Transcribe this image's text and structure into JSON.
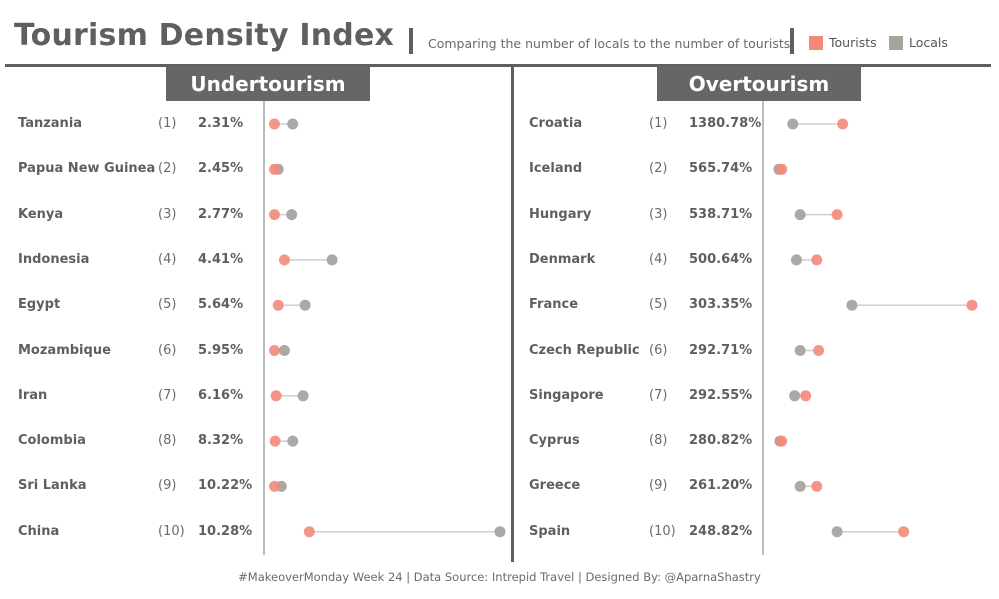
{
  "header": {
    "title": "Tourism Density Index",
    "separator": "|",
    "subtitle": "Comparing the number of locals to the number of tourists",
    "legend": [
      {
        "label": "Tourists",
        "color": "#f4897a"
      },
      {
        "label": "Locals",
        "color": "#a9a39e"
      }
    ]
  },
  "footer": "#MakeoverMonday Week 24 | Data Source: Intrepid Travel  | Designed By: @AparnaShastry",
  "colors": {
    "tourists": "#f4897a",
    "locals": "#a9a39e",
    "connector": "#cfcfcf",
    "axis": "#777777",
    "panel_title_bg": "#666666"
  },
  "chart_data": [
    {
      "type": "dot-plot",
      "title": "Undertourism",
      "series": [
        "Tourists",
        "Locals"
      ],
      "rows": [
        {
          "country": "Tanzania",
          "rank": "(1)",
          "ratio": "2.31%",
          "tourists": 0.12,
          "locals": 1.0
        },
        {
          "country": "Papua New Guinea",
          "rank": "(2)",
          "ratio": "2.45%",
          "tourists": 0.12,
          "locals": 0.3
        },
        {
          "country": "Kenya",
          "rank": "(3)",
          "ratio": "2.77%",
          "tourists": 0.12,
          "locals": 0.95
        },
        {
          "country": "Indonesia",
          "rank": "(4)",
          "ratio": "4.41%",
          "tourists": 0.6,
          "locals": 2.9
        },
        {
          "country": "Egypt",
          "rank": "(5)",
          "ratio": "5.64%",
          "tourists": 0.3,
          "locals": 1.6
        },
        {
          "country": "Mozambique",
          "rank": "(6)",
          "ratio": "5.95%",
          "tourists": 0.12,
          "locals": 0.6
        },
        {
          "country": "Iran",
          "rank": "(7)",
          "ratio": "6.16%",
          "tourists": 0.2,
          "locals": 1.5
        },
        {
          "country": "Colombia",
          "rank": "(8)",
          "ratio": "8.32%",
          "tourists": 0.15,
          "locals": 1.0
        },
        {
          "country": "Sri Lanka",
          "rank": "(9)",
          "ratio": "10.22%",
          "tourists": 0.12,
          "locals": 0.45
        },
        {
          "country": "China",
          "rank": "(10)",
          "ratio": "10.28%",
          "tourists": 1.8,
          "locals": 11.0
        }
      ]
    },
    {
      "type": "dot-plot",
      "title": "Overtourism",
      "series": [
        "Tourists",
        "Locals"
      ],
      "rows": [
        {
          "country": "Croatia",
          "rank": "(1)",
          "ratio": "1380.78%",
          "tourists": 3.5,
          "locals": 0.8
        },
        {
          "country": "Iceland",
          "rank": "(2)",
          "ratio": "565.74%",
          "tourists": 0.2,
          "locals": 0.05
        },
        {
          "country": "Hungary",
          "rank": "(3)",
          "ratio": "538.71%",
          "tourists": 3.2,
          "locals": 1.2
        },
        {
          "country": "Denmark",
          "rank": "(4)",
          "ratio": "500.64%",
          "tourists": 2.1,
          "locals": 1.0
        },
        {
          "country": "France",
          "rank": "(5)",
          "ratio": "303.35%",
          "tourists": 10.5,
          "locals": 4.0
        },
        {
          "country": "Czech Republic",
          "rank": "(6)",
          "ratio": "292.71%",
          "tourists": 2.2,
          "locals": 1.2
        },
        {
          "country": "Singapore",
          "rank": "(7)",
          "ratio": "292.55%",
          "tourists": 1.5,
          "locals": 0.9
        },
        {
          "country": "Cyprus",
          "rank": "(8)",
          "ratio": "280.82%",
          "tourists": 0.2,
          "locals": 0.1
        },
        {
          "country": "Greece",
          "rank": "(9)",
          "ratio": "261.20%",
          "tourists": 2.1,
          "locals": 1.2
        },
        {
          "country": "Spain",
          "rank": "(10)",
          "ratio": "248.82%",
          "tourists": 6.8,
          "locals": 3.2
        }
      ]
    }
  ]
}
